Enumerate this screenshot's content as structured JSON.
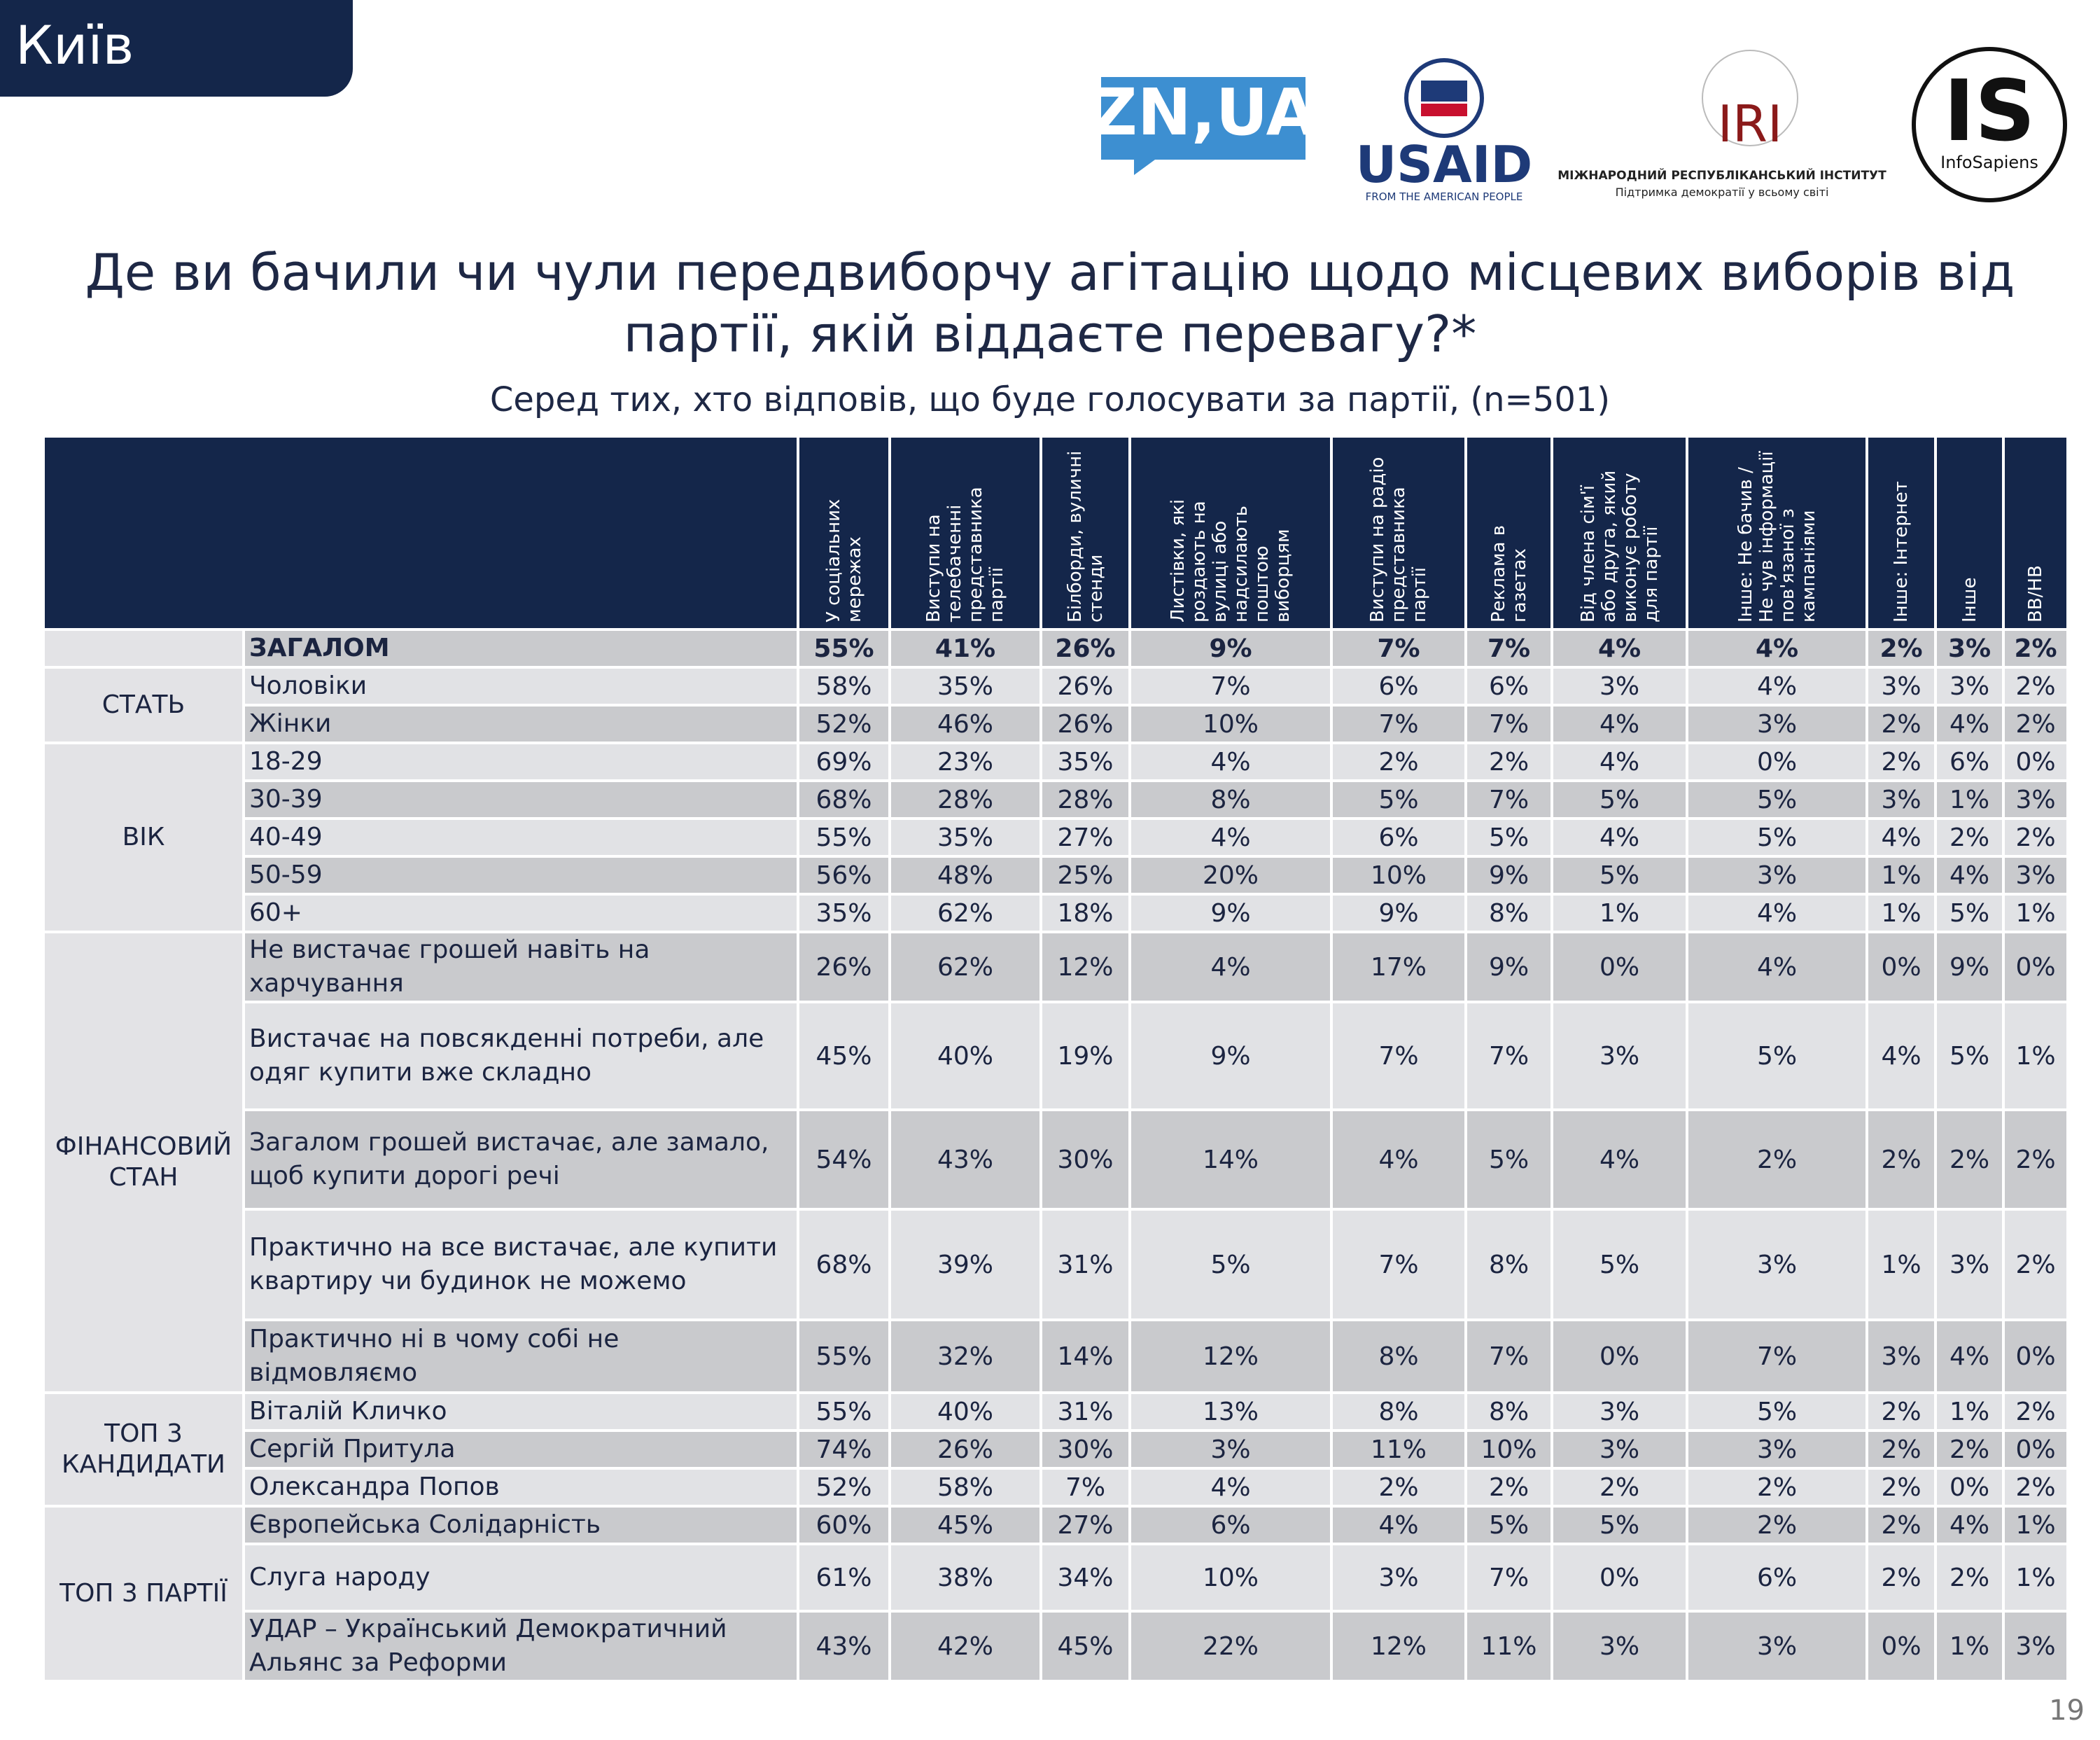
{
  "header": {
    "tab": "Київ"
  },
  "logos": {
    "znua": "ZN,UA",
    "usaid": "USAID",
    "usaid_tagline": "FROM THE AMERICAN PEOPLE",
    "iri": "IRI",
    "iri_name": "МІЖНАРОДНИЙ РЕСПУБЛІКАНСЬКИЙ ІНСТИТУТ",
    "iri_tagline": "Підтримка демократії у всьому світі",
    "is": "IS",
    "is_name": "InfoSapiens"
  },
  "title": "Де ви бачили чи чули передвиборчу агітацію щодо місцевих виборів від партії, якій віддаєте перевагу?*",
  "subtitle": "Серед тих, хто відповів, що буде голосувати за партії, (n=501)",
  "table": {
    "columns": [
      "У соціальних мережах",
      "Виступи на телебаченні представника партії",
      "Білборди, вуличні стенди",
      "Листівки, які роздають на вулиці або надсилають поштою виборцям",
      "Виступи на радіо представника партії",
      "Реклама в газетах",
      "Від члена сім'ї або друга, який виконує роботу для партії",
      "Інше: Не бачив / Не чув інформації пов'язаної з кампаніями",
      "Інше: Інтернет",
      "Інше",
      "ВВ/НВ"
    ],
    "total": {
      "label": "ЗАГАЛОМ",
      "values": [
        "55%",
        "41%",
        "26%",
        "9%",
        "7%",
        "7%",
        "4%",
        "4%",
        "2%",
        "3%",
        "2%"
      ]
    },
    "groups": [
      {
        "label": "СТАТЬ",
        "rows": [
          {
            "label": "Чоловіки",
            "values": [
              "58%",
              "35%",
              "26%",
              "7%",
              "6%",
              "6%",
              "3%",
              "4%",
              "3%",
              "3%",
              "2%"
            ]
          },
          {
            "label": "Жінки",
            "values": [
              "52%",
              "46%",
              "26%",
              "10%",
              "7%",
              "7%",
              "4%",
              "3%",
              "2%",
              "4%",
              "2%"
            ]
          }
        ]
      },
      {
        "label": "ВІК",
        "rows": [
          {
            "label": "18-29",
            "values": [
              "69%",
              "23%",
              "35%",
              "4%",
              "2%",
              "2%",
              "4%",
              "0%",
              "2%",
              "6%",
              "0%"
            ]
          },
          {
            "label": "30-39",
            "values": [
              "68%",
              "28%",
              "28%",
              "8%",
              "5%",
              "7%",
              "5%",
              "5%",
              "3%",
              "1%",
              "3%"
            ]
          },
          {
            "label": "40-49",
            "values": [
              "55%",
              "35%",
              "27%",
              "4%",
              "6%",
              "5%",
              "4%",
              "5%",
              "4%",
              "2%",
              "2%"
            ]
          },
          {
            "label": "50-59",
            "values": [
              "56%",
              "48%",
              "25%",
              "20%",
              "10%",
              "9%",
              "5%",
              "3%",
              "1%",
              "4%",
              "3%"
            ]
          },
          {
            "label": "60+",
            "values": [
              "35%",
              "62%",
              "18%",
              "9%",
              "9%",
              "8%",
              "1%",
              "4%",
              "1%",
              "5%",
              "1%"
            ]
          }
        ]
      },
      {
        "label": "ФІНАНСОВИЙ СТАН",
        "rows": [
          {
            "label": "Не вистачає грошей навіть на харчування",
            "values": [
              "26%",
              "62%",
              "12%",
              "4%",
              "17%",
              "9%",
              "0%",
              "4%",
              "0%",
              "9%",
              "0%"
            ]
          },
          {
            "label": "Вистачає на повсякденні потреби, але одяг купити вже складно",
            "values": [
              "45%",
              "40%",
              "19%",
              "9%",
              "7%",
              "7%",
              "3%",
              "5%",
              "4%",
              "5%",
              "1%"
            ]
          },
          {
            "label": "Загалом грошей вистачає, але замало, щоб купити дорогі речі",
            "values": [
              "54%",
              "43%",
              "30%",
              "14%",
              "4%",
              "5%",
              "4%",
              "2%",
              "2%",
              "2%",
              "2%"
            ]
          },
          {
            "label": "Практично на все вистачає, але купити квартиру чи будинок не можемо",
            "values": [
              "68%",
              "39%",
              "31%",
              "5%",
              "7%",
              "8%",
              "5%",
              "3%",
              "1%",
              "3%",
              "2%"
            ]
          },
          {
            "label": "Практично ні в чому собі не відмовляємо",
            "values": [
              "55%",
              "32%",
              "14%",
              "12%",
              "8%",
              "7%",
              "0%",
              "7%",
              "3%",
              "4%",
              "0%"
            ]
          }
        ]
      },
      {
        "label": "ТОП 3 КАНДИДАТИ",
        "rows": [
          {
            "label": "Віталій Кличко",
            "values": [
              "55%",
              "40%",
              "31%",
              "13%",
              "8%",
              "8%",
              "3%",
              "5%",
              "2%",
              "1%",
              "2%"
            ]
          },
          {
            "label": "Сергій Притула",
            "values": [
              "74%",
              "26%",
              "30%",
              "3%",
              "11%",
              "10%",
              "3%",
              "3%",
              "2%",
              "2%",
              "0%"
            ]
          },
          {
            "label": "Олександра Попов",
            "values": [
              "52%",
              "58%",
              "7%",
              "4%",
              "2%",
              "2%",
              "2%",
              "2%",
              "2%",
              "0%",
              "2%"
            ]
          }
        ]
      },
      {
        "label": "ТОП 3 ПАРТІЇ",
        "rows": [
          {
            "label": "Європейська Солідарність",
            "values": [
              "60%",
              "45%",
              "27%",
              "6%",
              "4%",
              "5%",
              "5%",
              "2%",
              "2%",
              "4%",
              "1%"
            ]
          },
          {
            "label": "Слуга народу",
            "values": [
              "61%",
              "38%",
              "34%",
              "10%",
              "3%",
              "7%",
              "0%",
              "6%",
              "2%",
              "2%",
              "1%"
            ]
          },
          {
            "label": "УДАР – Український Демократичний Альянс за Реформи",
            "values": [
              "43%",
              "42%",
              "45%",
              "22%",
              "12%",
              "11%",
              "3%",
              "3%",
              "0%",
              "1%",
              "3%"
            ]
          }
        ]
      }
    ]
  },
  "page_number": "19"
}
